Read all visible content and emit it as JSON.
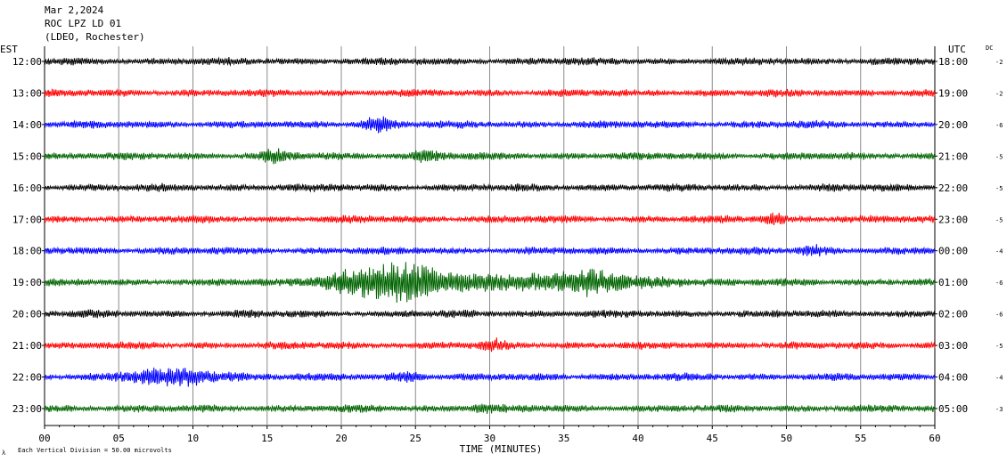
{
  "header": {
    "date": "Mar 2,2024",
    "station": "ROC LPZ LD 01",
    "network": "(LDEO, Rochester)"
  },
  "left_axis_label": "EST",
  "right_axis_label": "UTC",
  "dc_label": "DC",
  "footnote": "Each Vertical Division =   50.00 microvolts",
  "chart_data": {
    "type": "line",
    "title": "ROC LPZ LD 01",
    "xlabel": "TIME (MINUTES)",
    "xlim": [
      0,
      60
    ],
    "x_ticks": [
      "00",
      "05",
      "10",
      "15",
      "20",
      "25",
      "30",
      "35",
      "40",
      "45",
      "50",
      "55",
      "60"
    ],
    "colors": [
      "#000000",
      "#ff0000",
      "#0000ff",
      "#006400"
    ],
    "traces": [
      {
        "est": "12:00",
        "utc": "18:00",
        "dc": "-2",
        "color": "#000000",
        "bursts": []
      },
      {
        "est": "13:00",
        "utc": "19:00",
        "dc": "-2",
        "color": "#ff0000",
        "bursts": []
      },
      {
        "est": "14:00",
        "utc": "20:00",
        "dc": "-6",
        "color": "#0000ff",
        "bursts": [
          [
            22.5,
            1.0,
            1.6
          ]
        ]
      },
      {
        "est": "15:00",
        "utc": "21:00",
        "dc": "-5",
        "color": "#006400",
        "bursts": [
          [
            15.6,
            1.0,
            1.0
          ],
          [
            25.8,
            1.2,
            1.0
          ]
        ]
      },
      {
        "est": "16:00",
        "utc": "22:00",
        "dc": "-5",
        "color": "#000000",
        "bursts": []
      },
      {
        "est": "17:00",
        "utc": "23:00",
        "dc": "-5",
        "color": "#ff0000",
        "bursts": [
          [
            49.1,
            0.8,
            1.0
          ]
        ]
      },
      {
        "est": "18:00",
        "utc": "00:00",
        "dc": "-4",
        "color": "#0000ff",
        "bursts": [
          [
            51.8,
            1.0,
            1.0
          ]
        ]
      },
      {
        "est": "19:00",
        "utc": "01:00",
        "dc": "-6",
        "color": "#006400",
        "bursts": [
          [
            21.5,
            3.0,
            2.8
          ],
          [
            24.6,
            2.0,
            3.4
          ],
          [
            28.5,
            2.2,
            1.8
          ],
          [
            33.0,
            2.4,
            1.8
          ],
          [
            37.0,
            2.0,
            2.6
          ],
          [
            41.5,
            2.5,
            0.8
          ]
        ]
      },
      {
        "est": "20:00",
        "utc": "02:00",
        "dc": "-6",
        "color": "#000000",
        "bursts": []
      },
      {
        "est": "21:00",
        "utc": "03:00",
        "dc": "-5",
        "color": "#ff0000",
        "bursts": [
          [
            30.3,
            0.8,
            1.0
          ]
        ]
      },
      {
        "est": "22:00",
        "utc": "04:00",
        "dc": "-4",
        "color": "#0000ff",
        "bursts": [
          [
            9.0,
            3.5,
            1.7
          ],
          [
            24.5,
            1.0,
            1.0
          ]
        ]
      },
      {
        "est": "23:00",
        "utc": "05:00",
        "dc": "-3",
        "color": "#006400",
        "bursts": [
          [
            29.5,
            1.0,
            0.6
          ]
        ]
      }
    ]
  }
}
